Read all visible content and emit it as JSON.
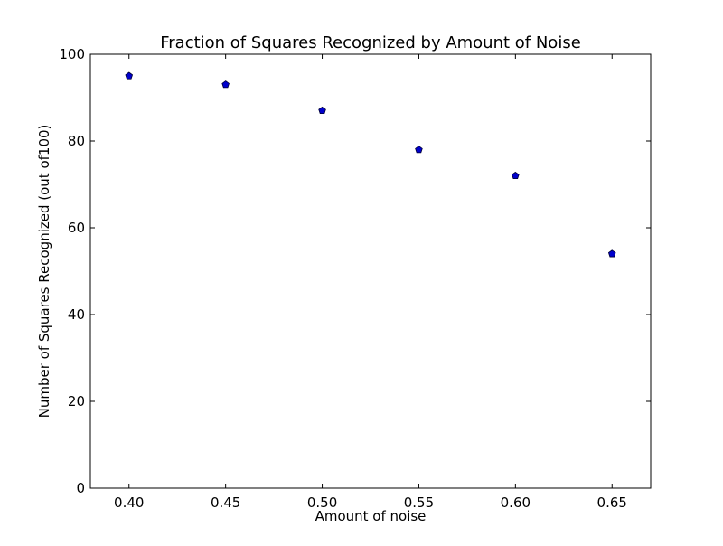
{
  "chart_data": {
    "type": "scatter",
    "title": "Fraction of Squares Recognized by Amount of Noise",
    "xlabel": "Amount of noise",
    "ylabel": "Number of Squares Recognized (out of100)",
    "xlim": [
      0.38,
      0.67
    ],
    "ylim": [
      0,
      100
    ],
    "x_ticks": [
      0.4,
      0.45,
      0.5,
      0.55,
      0.6,
      0.65
    ],
    "x_tick_labels": [
      "0.40",
      "0.45",
      "0.50",
      "0.55",
      "0.60",
      "0.65"
    ],
    "y_ticks": [
      0,
      20,
      40,
      60,
      80,
      100
    ],
    "y_tick_labels": [
      "0",
      "20",
      "40",
      "60",
      "80",
      "100"
    ],
    "grid": false,
    "series": [
      {
        "x": [
          0.4,
          0.45,
          0.5,
          0.55,
          0.6,
          0.65
        ],
        "y": [
          95,
          93,
          87,
          78,
          72,
          54
        ],
        "marker": "pentagon",
        "color": "#0000cc"
      }
    ]
  }
}
